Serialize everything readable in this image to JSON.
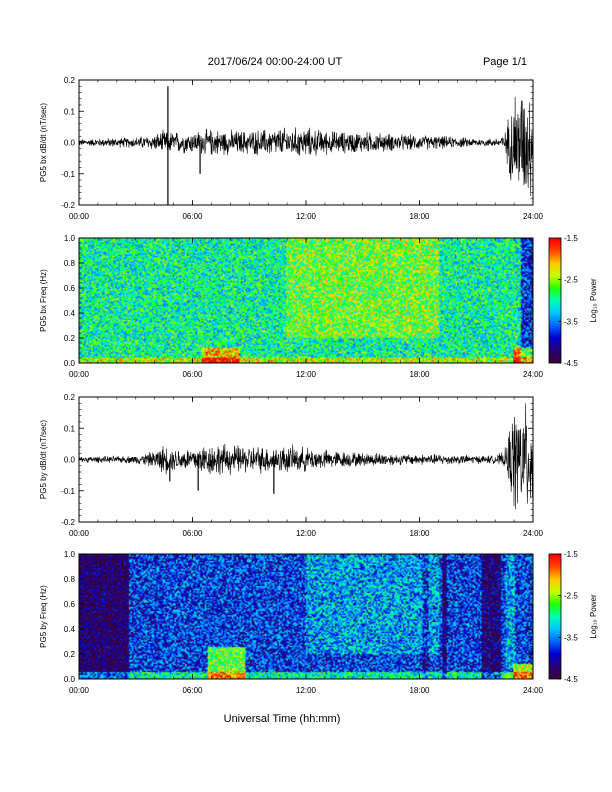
{
  "header": {
    "title": "2017/06/24  00:00-24:00 UT",
    "page": "Page 1/1"
  },
  "footer": {
    "xlabel": "Universal Time (hh:mm)"
  },
  "colors": {
    "trace": "#000000",
    "colormap": [
      "#3a003a",
      "#27007a",
      "#0000d0",
      "#0068ff",
      "#00c8ff",
      "#00ffb4",
      "#22ff00",
      "#c8ff00",
      "#ffc800",
      "#ff4a00",
      "#ff0000"
    ]
  },
  "chart_data": [
    {
      "id": "bx_waveform",
      "type": "line",
      "ylabel": "PG5 bx dB/dt (nT/sec)",
      "x_ticks": [
        "00:00",
        "06:00",
        "12:00",
        "18:00",
        "24:00"
      ],
      "xlim_hours": [
        0,
        24
      ],
      "ylim": [
        -0.2,
        0.2
      ],
      "y_ticks": [
        "-0.2",
        "-0.1",
        "0.0",
        "0.1",
        "0.2"
      ],
      "envelope": {
        "x_hours": [
          0,
          1,
          2,
          3,
          4,
          4.5,
          5,
          6,
          7,
          8,
          9,
          10,
          11,
          12,
          13,
          14,
          15,
          16,
          17,
          18,
          19,
          20,
          21,
          22,
          22.5,
          23,
          24
        ],
        "amplitude": [
          0.012,
          0.015,
          0.018,
          0.02,
          0.03,
          0.045,
          0.04,
          0.04,
          0.05,
          0.045,
          0.045,
          0.05,
          0.055,
          0.055,
          0.045,
          0.04,
          0.04,
          0.035,
          0.03,
          0.028,
          0.025,
          0.02,
          0.015,
          0.015,
          0.03,
          0.2,
          0.2
        ]
      },
      "spikes": [
        {
          "x_hours": 4.7,
          "value": 0.18
        },
        {
          "x_hours": 4.7,
          "value": -0.2
        },
        {
          "x_hours": 6.4,
          "value": -0.1
        }
      ]
    },
    {
      "id": "bx_spectrogram",
      "type": "heatmap",
      "ylabel": "PG5 bx Freq (Hz)",
      "colorbar_label": "Log₁₀ Power",
      "x_ticks": [
        "00:00",
        "06:00",
        "12:00",
        "18:00",
        "24:00"
      ],
      "xlim_hours": [
        0,
        24
      ],
      "ylim": [
        0.0,
        1.0
      ],
      "y_ticks": [
        "0.0",
        "0.2",
        "0.4",
        "0.6",
        "0.8",
        "1.0"
      ],
      "clim": [
        -4.5,
        -1.5
      ],
      "cbar_ticks": [
        "-4.5",
        "-3.5",
        "-2.5",
        "-1.5"
      ],
      "base_level": -3.0,
      "features": [
        {
          "x_hours": [
            11,
            19
          ],
          "freq": [
            0.2,
            1.0
          ],
          "delta": 0.4
        },
        {
          "x_hours": [
            6.5,
            8.5
          ],
          "freq": [
            0.0,
            0.12
          ],
          "delta": 0.9
        },
        {
          "x_hours": [
            0,
            24
          ],
          "freq": [
            0.0,
            0.05
          ],
          "delta": 0.6
        },
        {
          "x_hours": [
            23.4,
            24
          ],
          "freq": [
            0.0,
            1.0
          ],
          "delta": -0.8
        },
        {
          "x_hours": [
            23.0,
            24
          ],
          "freq": [
            0.0,
            0.12
          ],
          "delta": 1.1
        }
      ]
    },
    {
      "id": "by_waveform",
      "type": "line",
      "ylabel": "PG5 by dB/dt (nT/sec)",
      "x_ticks": [
        "00:00",
        "06:00",
        "12:00",
        "18:00",
        "24:00"
      ],
      "xlim_hours": [
        0,
        24
      ],
      "ylim": [
        -0.2,
        0.2
      ],
      "y_ticks": [
        "-0.2",
        "-0.1",
        "0.0",
        "0.1",
        "0.2"
      ],
      "envelope": {
        "x_hours": [
          0,
          1,
          2,
          3,
          4,
          4.5,
          5,
          6,
          6.5,
          7,
          8,
          9,
          10,
          11,
          12,
          13,
          14,
          15,
          16,
          17,
          18,
          19,
          20,
          21,
          22,
          22.5,
          23,
          24
        ],
        "amplitude": [
          0.01,
          0.012,
          0.012,
          0.015,
          0.03,
          0.055,
          0.04,
          0.045,
          0.055,
          0.06,
          0.055,
          0.05,
          0.05,
          0.05,
          0.045,
          0.035,
          0.03,
          0.025,
          0.025,
          0.02,
          0.02,
          0.02,
          0.018,
          0.015,
          0.015,
          0.03,
          0.2,
          0.2
        ]
      },
      "spikes": [
        {
          "x_hours": 4.8,
          "value": -0.07
        },
        {
          "x_hours": 6.3,
          "value": -0.1
        },
        {
          "x_hours": 10.3,
          "value": -0.11
        }
      ]
    },
    {
      "id": "by_spectrogram",
      "type": "heatmap",
      "ylabel": "PG5 by Freq (Hz)",
      "colorbar_label": "Log₁₀ Power",
      "x_ticks": [
        "00:00",
        "06:00",
        "12:00",
        "18:00",
        "24:00"
      ],
      "xlim_hours": [
        0,
        24
      ],
      "ylim": [
        0.0,
        1.0
      ],
      "y_ticks": [
        "0.0",
        "0.2",
        "0.4",
        "0.6",
        "0.8",
        "1.0"
      ],
      "clim": [
        -4.5,
        -1.5
      ],
      "cbar_ticks": [
        "-4.5",
        "-3.5",
        "-2.5",
        "-1.5"
      ],
      "base_level": -3.75,
      "features": [
        {
          "x_hours": [
            0,
            2.6
          ],
          "freq": [
            0.0,
            1.0
          ],
          "delta": -0.6
        },
        {
          "x_hours": [
            12,
            19
          ],
          "freq": [
            0.2,
            1.0
          ],
          "delta": 0.35
        },
        {
          "x_hours": [
            6.8,
            8.8
          ],
          "freq": [
            0.0,
            0.25
          ],
          "delta": 1.1
        },
        {
          "x_hours": [
            0,
            24
          ],
          "freq": [
            0.0,
            0.06
          ],
          "delta": 0.7
        },
        {
          "x_hours": [
            18.2,
            18.5
          ],
          "freq": [
            0.0,
            1.0
          ],
          "delta": -0.4
        },
        {
          "x_hours": [
            19.2,
            19.4
          ],
          "freq": [
            0.0,
            1.0
          ],
          "delta": -0.5
        },
        {
          "x_hours": [
            21.3,
            22.3
          ],
          "freq": [
            0.0,
            1.0
          ],
          "delta": -0.5
        },
        {
          "x_hours": [
            22.6,
            23.0
          ],
          "freq": [
            0.0,
            1.0
          ],
          "delta": 0.4
        },
        {
          "x_hours": [
            23.0,
            24
          ],
          "freq": [
            0.0,
            0.12
          ],
          "delta": 1.2
        }
      ]
    }
  ]
}
